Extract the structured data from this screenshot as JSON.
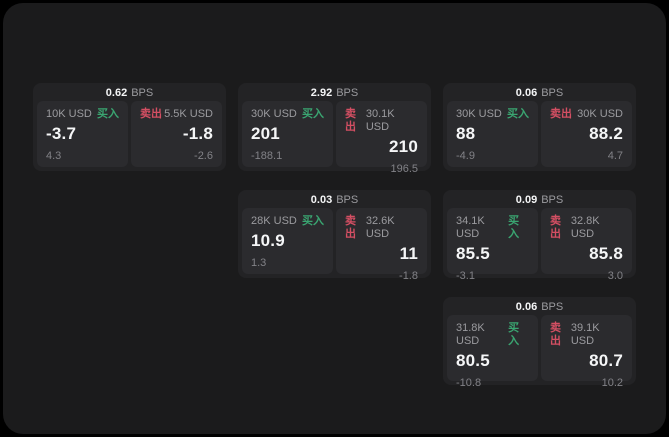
{
  "labels": {
    "buy": "买入",
    "sell": "卖出",
    "bps_unit": "BPS"
  },
  "colors": {
    "canvas_bg": "#000000",
    "page_bg": "#1b1b1c",
    "card_bg": "#232325",
    "panel_bg": "#2b2b2e",
    "value_text": "#f5f6f7",
    "muted_text": "#9b9b9f",
    "sub_text": "#828287",
    "buy": "#3aa571",
    "sell": "#d44f63"
  },
  "cards": [
    {
      "row": 0,
      "col": 0,
      "bps": "0.62",
      "buy": {
        "size": "10K USD",
        "value": "-3.7",
        "sub": "4.3"
      },
      "sell": {
        "size": "5.5K USD",
        "value": "-1.8",
        "sub": "-2.6"
      }
    },
    {
      "row": 0,
      "col": 1,
      "bps": "2.92",
      "buy": {
        "size": "30K USD",
        "value": "201",
        "sub": "-188.1"
      },
      "sell": {
        "size": "30.1K USD",
        "value": "210",
        "sub": "196.5"
      }
    },
    {
      "row": 0,
      "col": 2,
      "bps": "0.06",
      "buy": {
        "size": "30K USD",
        "value": "88",
        "sub": "-4.9"
      },
      "sell": {
        "size": "30K USD",
        "value": "88.2",
        "sub": "4.7"
      }
    },
    {
      "row": 1,
      "col": 1,
      "bps": "0.03",
      "buy": {
        "size": "28K USD",
        "value": "10.9",
        "sub": "1.3"
      },
      "sell": {
        "size": "32.6K USD",
        "value": "11",
        "sub": "-1.8"
      }
    },
    {
      "row": 1,
      "col": 2,
      "bps": "0.09",
      "buy": {
        "size": "34.1K USD",
        "value": "85.5",
        "sub": "-3.1"
      },
      "sell": {
        "size": "32.8K USD",
        "value": "85.8",
        "sub": "3.0"
      }
    },
    {
      "row": 2,
      "col": 2,
      "bps": "0.06",
      "buy": {
        "size": "31.8K USD",
        "value": "80.5",
        "sub": "-10.8"
      },
      "sell": {
        "size": "39.1K USD",
        "value": "80.7",
        "sub": "10.2"
      }
    }
  ]
}
